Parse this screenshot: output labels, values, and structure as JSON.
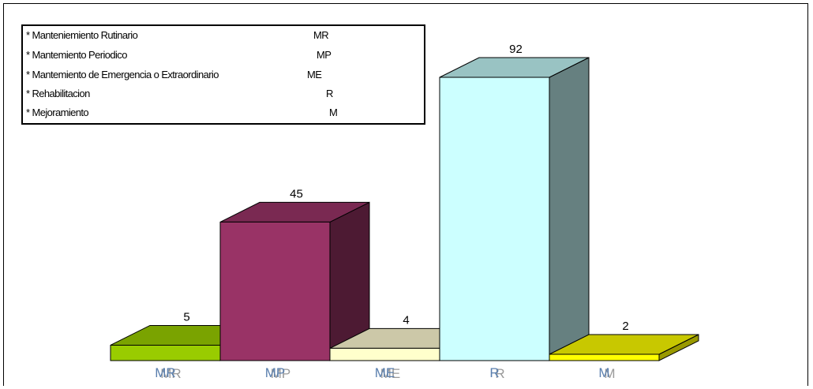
{
  "legend": {
    "items": [
      {
        "desc": "* Manteniemiento Rutinario",
        "abbr": "MR"
      },
      {
        "desc": "* Mantemiento Periodico",
        "abbr": "MP"
      },
      {
        "desc": "* Mantemiento de Emergencia o Extraordinario",
        "abbr": "ME"
      },
      {
        "desc": "* Rehabilitacion",
        "abbr": "R"
      },
      {
        "desc": "* Mejoramiento",
        "abbr": "M"
      }
    ]
  },
  "chart_data": {
    "type": "bar",
    "style": "3d",
    "categories": [
      "MR",
      "MP",
      "ME",
      "R",
      "M"
    ],
    "values": [
      5,
      45,
      4,
      92,
      2
    ],
    "ylim": [
      0,
      92
    ],
    "grid": false,
    "legend_position": "top-left",
    "bar_colors": [
      {
        "front": "#99cc00",
        "top": "#7aa300",
        "side": "#5c7a00"
      },
      {
        "front": "#993366",
        "top": "#7a2952",
        "side": "#4d1a33"
      },
      {
        "front": "#ffffcc",
        "top": "#ccc8a8",
        "side": "#99997a"
      },
      {
        "front": "#ccffff",
        "top": "#99c3c3",
        "side": "#668080"
      },
      {
        "front": "#ffff00",
        "top": "#c8c800",
        "side": "#999900"
      }
    ],
    "label_color": "#5a7fae",
    "label_shadow_color": "#9a9a9a"
  }
}
